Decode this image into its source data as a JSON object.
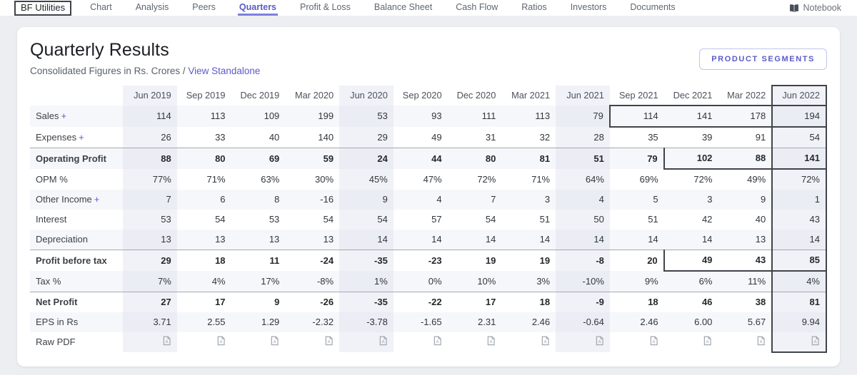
{
  "nav": {
    "company": "BF Utilities",
    "items": [
      "Chart",
      "Analysis",
      "Peers",
      "Quarters",
      "Profit & Loss",
      "Balance Sheet",
      "Cash Flow",
      "Ratios",
      "Investors",
      "Documents"
    ],
    "active_item": "Quarters",
    "notebook_label": "Notebook"
  },
  "header": {
    "title": "Quarterly Results",
    "subtitle_prefix": "Consolidated Figures in Rs. Crores /",
    "standalone_link": "View Standalone",
    "product_segments_button": "PRODUCT SEGMENTS"
  },
  "table": {
    "columns": [
      "Jun 2019",
      "Sep 2019",
      "Dec 2019",
      "Mar 2020",
      "Jun 2020",
      "Sep 2020",
      "Dec 2020",
      "Mar 2021",
      "Jun 2021",
      "Sep 2021",
      "Dec 2021",
      "Mar 2022",
      "Jun 2022"
    ],
    "rows": [
      {
        "label": "Sales",
        "expandable": true,
        "bold": false,
        "values": [
          "114",
          "113",
          "109",
          "199",
          "53",
          "93",
          "111",
          "113",
          "79",
          "114",
          "141",
          "178",
          "194"
        ]
      },
      {
        "label": "Expenses",
        "expandable": true,
        "bold": false,
        "values": [
          "26",
          "33",
          "40",
          "140",
          "29",
          "49",
          "31",
          "32",
          "28",
          "35",
          "39",
          "91",
          "54"
        ]
      },
      {
        "label": "Operating Profit",
        "expandable": false,
        "bold": true,
        "values": [
          "88",
          "80",
          "69",
          "59",
          "24",
          "44",
          "80",
          "81",
          "51",
          "79",
          "102",
          "88",
          "141"
        ]
      },
      {
        "label": "OPM %",
        "expandable": false,
        "bold": false,
        "values": [
          "77%",
          "71%",
          "63%",
          "30%",
          "45%",
          "47%",
          "72%",
          "71%",
          "64%",
          "69%",
          "72%",
          "49%",
          "72%"
        ]
      },
      {
        "label": "Other Income",
        "expandable": true,
        "bold": false,
        "values": [
          "7",
          "6",
          "8",
          "-16",
          "9",
          "4",
          "7",
          "3",
          "4",
          "5",
          "3",
          "9",
          "1"
        ]
      },
      {
        "label": "Interest",
        "expandable": false,
        "bold": false,
        "values": [
          "53",
          "54",
          "53",
          "54",
          "54",
          "57",
          "54",
          "51",
          "50",
          "51",
          "42",
          "40",
          "43"
        ]
      },
      {
        "label": "Depreciation",
        "expandable": false,
        "bold": false,
        "values": [
          "13",
          "13",
          "13",
          "13",
          "14",
          "14",
          "14",
          "14",
          "14",
          "14",
          "14",
          "13",
          "14"
        ]
      },
      {
        "label": "Profit before tax",
        "expandable": false,
        "bold": true,
        "values": [
          "29",
          "18",
          "11",
          "-24",
          "-35",
          "-23",
          "19",
          "19",
          "-8",
          "20",
          "49",
          "43",
          "85"
        ]
      },
      {
        "label": "Tax %",
        "expandable": false,
        "bold": false,
        "values": [
          "7%",
          "4%",
          "17%",
          "-8%",
          "1%",
          "0%",
          "10%",
          "3%",
          "-10%",
          "9%",
          "6%",
          "11%",
          "4%"
        ]
      },
      {
        "label": "Net Profit",
        "expandable": false,
        "bold": true,
        "values": [
          "27",
          "17",
          "9",
          "-26",
          "-35",
          "-22",
          "17",
          "18",
          "-9",
          "18",
          "46",
          "38",
          "81"
        ]
      },
      {
        "label": "EPS in Rs",
        "expandable": false,
        "bold": false,
        "values": [
          "3.71",
          "2.55",
          "1.29",
          "-2.32",
          "-3.78",
          "-1.65",
          "2.31",
          "2.46",
          "-0.64",
          "2.46",
          "6.00",
          "5.67",
          "9.94"
        ]
      }
    ],
    "raw_pdf_label": "Raw PDF",
    "stripe_row_indices": [
      0,
      2,
      4,
      6,
      8,
      10
    ],
    "rule_top_row_indices": [
      2,
      7,
      9
    ],
    "jun_column_indices": [
      0,
      4,
      8,
      12
    ],
    "selected_column_index": 12
  },
  "annotations": {
    "boxed_nav_item": "BF Utilities",
    "boxed_column": "Jun 2022",
    "boxed_cell_ranges": [
      {
        "row_index": 0,
        "row": "Sales",
        "col_start": 9,
        "col_end": 12,
        "columns": [
          "Sep 2021",
          "Dec 2021",
          "Mar 2022",
          "Jun 2022"
        ]
      },
      {
        "row_index": 2,
        "row": "Operating Profit",
        "col_start": 10,
        "col_end": 12,
        "columns": [
          "Dec 2021",
          "Mar 2022",
          "Jun 2022"
        ]
      },
      {
        "row_index": 7,
        "row": "Profit before tax",
        "col_start": 10,
        "col_end": 12,
        "columns": [
          "Dec 2021",
          "Mar 2022",
          "Jun 2022"
        ]
      }
    ]
  },
  "colors": {
    "accent": "#5a5bc9",
    "page_background": "#edeef2",
    "row_stripe": "#f6f7fb",
    "column_stripe": "#f1f2f7",
    "highlight_border": "#3f444b",
    "muted_text": "#9ba1aa"
  }
}
